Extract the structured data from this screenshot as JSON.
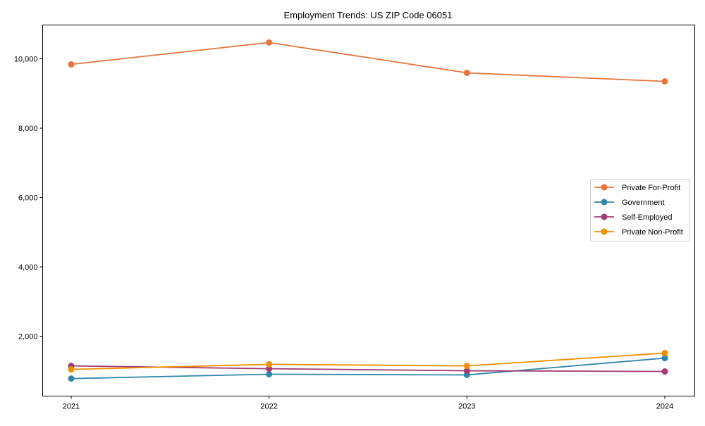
{
  "chart_data": {
    "type": "line",
    "title": "Employment Trends: US ZIP Code 06051",
    "xlabel": "",
    "ylabel": "",
    "x": [
      "2021",
      "2022",
      "2023",
      "2024"
    ],
    "ylim": [
      275,
      10975
    ],
    "yticks": [
      2000,
      4000,
      6000,
      8000,
      10000
    ],
    "ytick_labels": [
      "2,000",
      "4,000",
      "6,000",
      "8,000",
      "10,000"
    ],
    "grid": false,
    "legend_position": "center-right",
    "series": [
      {
        "name": "Private For-Profit",
        "color": "#E8743B",
        "values": [
          9840,
          10470,
          9595,
          9350
        ]
      },
      {
        "name": "Government",
        "color": "#2E86AB",
        "values": [
          780,
          905,
          885,
          1370
        ]
      },
      {
        "name": "Self-Employed",
        "color": "#A23B72",
        "values": [
          1145,
          1065,
          1005,
          985
        ]
      },
      {
        "name": "Private Non-Profit",
        "color": "#F18F01",
        "values": [
          1045,
          1190,
          1145,
          1515
        ]
      }
    ]
  }
}
